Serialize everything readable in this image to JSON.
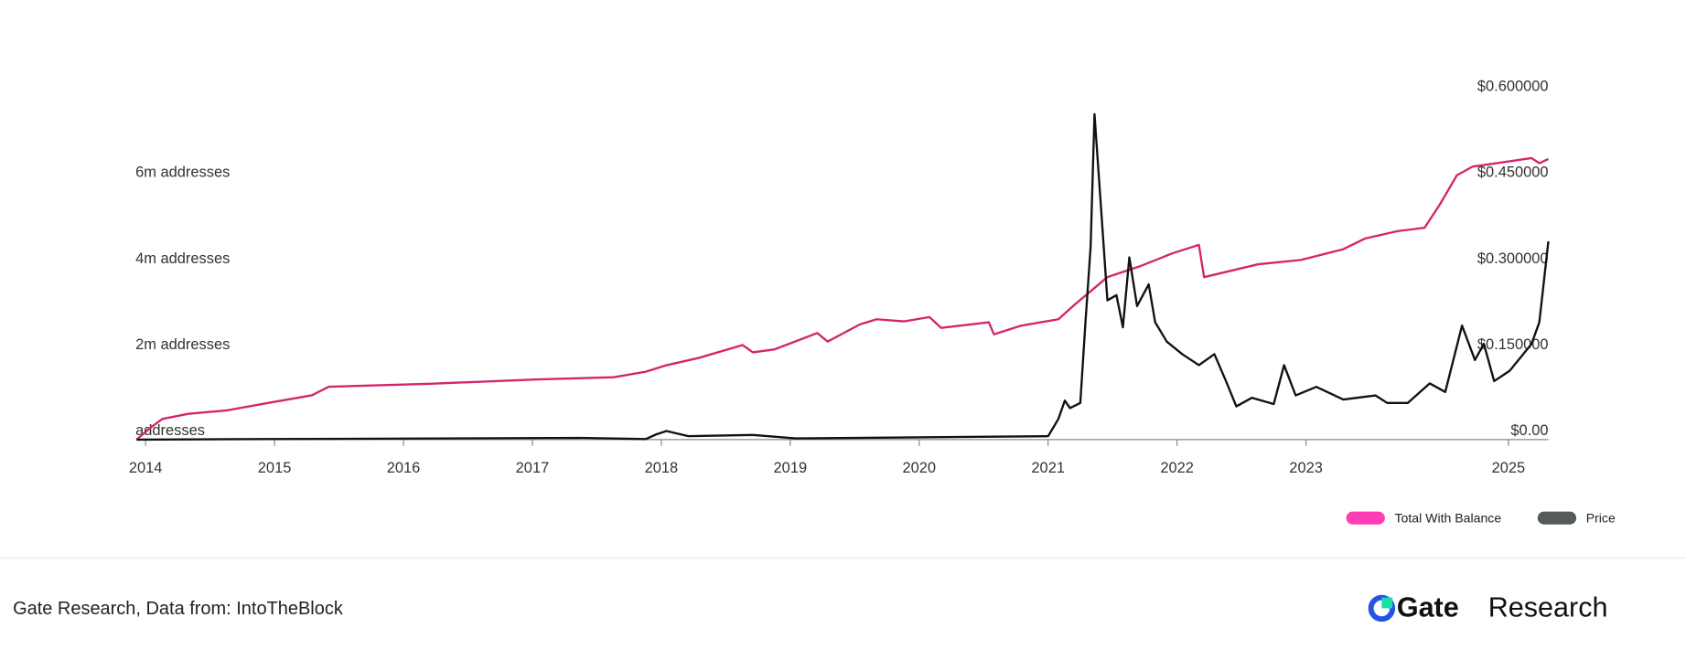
{
  "chart_data": {
    "type": "line",
    "xlim": [
      2013.93,
      2024.88
    ],
    "xticks": [
      2014,
      2015,
      2016,
      2017,
      2018,
      2019,
      2020,
      2021,
      2022,
      2023,
      {
        "value": 2024.57,
        "label": "2025"
      }
    ],
    "ylim": [
      0,
      8000000
    ],
    "yticks": [
      {
        "value": 0,
        "label": "addresses"
      },
      {
        "value": 2000000,
        "label": "2m addresses"
      },
      {
        "value": 4000000,
        "label": "4m addresses"
      },
      {
        "value": 6000000,
        "label": "6m addresses"
      }
    ],
    "y2lim": [
      0,
      0.6
    ],
    "y2ticks": [
      {
        "value": 0,
        "label": "$0.00"
      },
      {
        "value": 0.15,
        "label": "$0.150000"
      },
      {
        "value": 0.3,
        "label": "$0.300000"
      },
      {
        "value": 0.45,
        "label": "$0.450000"
      },
      {
        "value": 0.6,
        "label": "$0.600000"
      }
    ],
    "series": [
      {
        "name": "Total With Balance",
        "color": "#d6246e",
        "legend_color": "#ff3eb5",
        "x": [
          2013.93,
          2014.04,
          2014.13,
          2014.33,
          2014.63,
          2015.04,
          2015.29,
          2015.42,
          2016.21,
          2017.04,
          2017.63,
          2017.88,
          2018.04,
          2018.29,
          2018.63,
          2018.71,
          2018.88,
          2019.21,
          2019.29,
          2019.54,
          2019.67,
          2019.88,
          2020.08,
          2020.17,
          2020.54,
          2020.58,
          2020.79,
          2021.08,
          2021.21,
          2021.46,
          2021.71,
          2021.96,
          2022.17,
          2022.21,
          2022.63,
          2022.96,
          2023.29,
          2023.46,
          2023.71,
          2023.92,
          2024.04,
          2024.17,
          2024.29,
          2024.75,
          2024.81,
          2024.88
        ],
        "values": [
          0,
          280000,
          480000,
          600000,
          680000,
          900000,
          1030000,
          1230000,
          1300000,
          1400000,
          1450000,
          1580000,
          1730000,
          1900000,
          2200000,
          2030000,
          2100000,
          2480000,
          2280000,
          2680000,
          2800000,
          2750000,
          2850000,
          2600000,
          2730000,
          2450000,
          2650000,
          2800000,
          3150000,
          3780000,
          4030000,
          4330000,
          4530000,
          3780000,
          4080000,
          4180000,
          4430000,
          4680000,
          4850000,
          4930000,
          5480000,
          6150000,
          6350000,
          6550000,
          6430000,
          6530000
        ]
      },
      {
        "name": "Price",
        "color": "#111111",
        "legend_color": "#555a5a",
        "axis": "y2",
        "x": [
          2013.93,
          2017.38,
          2017.88,
          2017.96,
          2018.04,
          2018.21,
          2018.71,
          2019.04,
          2021.0,
          2021.08,
          2021.13,
          2021.17,
          2021.25,
          2021.29,
          2021.33,
          2021.36,
          2021.42,
          2021.46,
          2021.53,
          2021.58,
          2021.63,
          2021.69,
          2021.78,
          2021.83,
          2021.92,
          2022.04,
          2022.17,
          2022.29,
          2022.38,
          2022.46,
          2022.58,
          2022.75,
          2022.83,
          2022.92,
          2023.08,
          2023.29,
          2023.54,
          2023.63,
          2023.79,
          2023.96,
          2024.08,
          2024.21,
          2024.31,
          2024.38,
          2024.46,
          2024.58,
          2024.75,
          2024.81,
          2024.88
        ],
        "values": [
          0,
          0.003,
          0.001,
          0.009,
          0.015,
          0.006,
          0.008,
          0.002,
          0.006,
          0.036,
          0.068,
          0.055,
          0.064,
          0.205,
          0.337,
          0.568,
          0.374,
          0.243,
          0.252,
          0.196,
          0.318,
          0.233,
          0.271,
          0.205,
          0.171,
          0.149,
          0.13,
          0.149,
          0.102,
          0.058,
          0.073,
          0.062,
          0.13,
          0.077,
          0.092,
          0.07,
          0.077,
          0.064,
          0.064,
          0.098,
          0.083,
          0.199,
          0.139,
          0.167,
          0.102,
          0.12,
          0.167,
          0.205,
          0.346
        ]
      }
    ]
  },
  "source": "Gate Research, Data from: IntoTheBlock",
  "logo": {
    "brand": "Gate",
    "product": "Research"
  }
}
